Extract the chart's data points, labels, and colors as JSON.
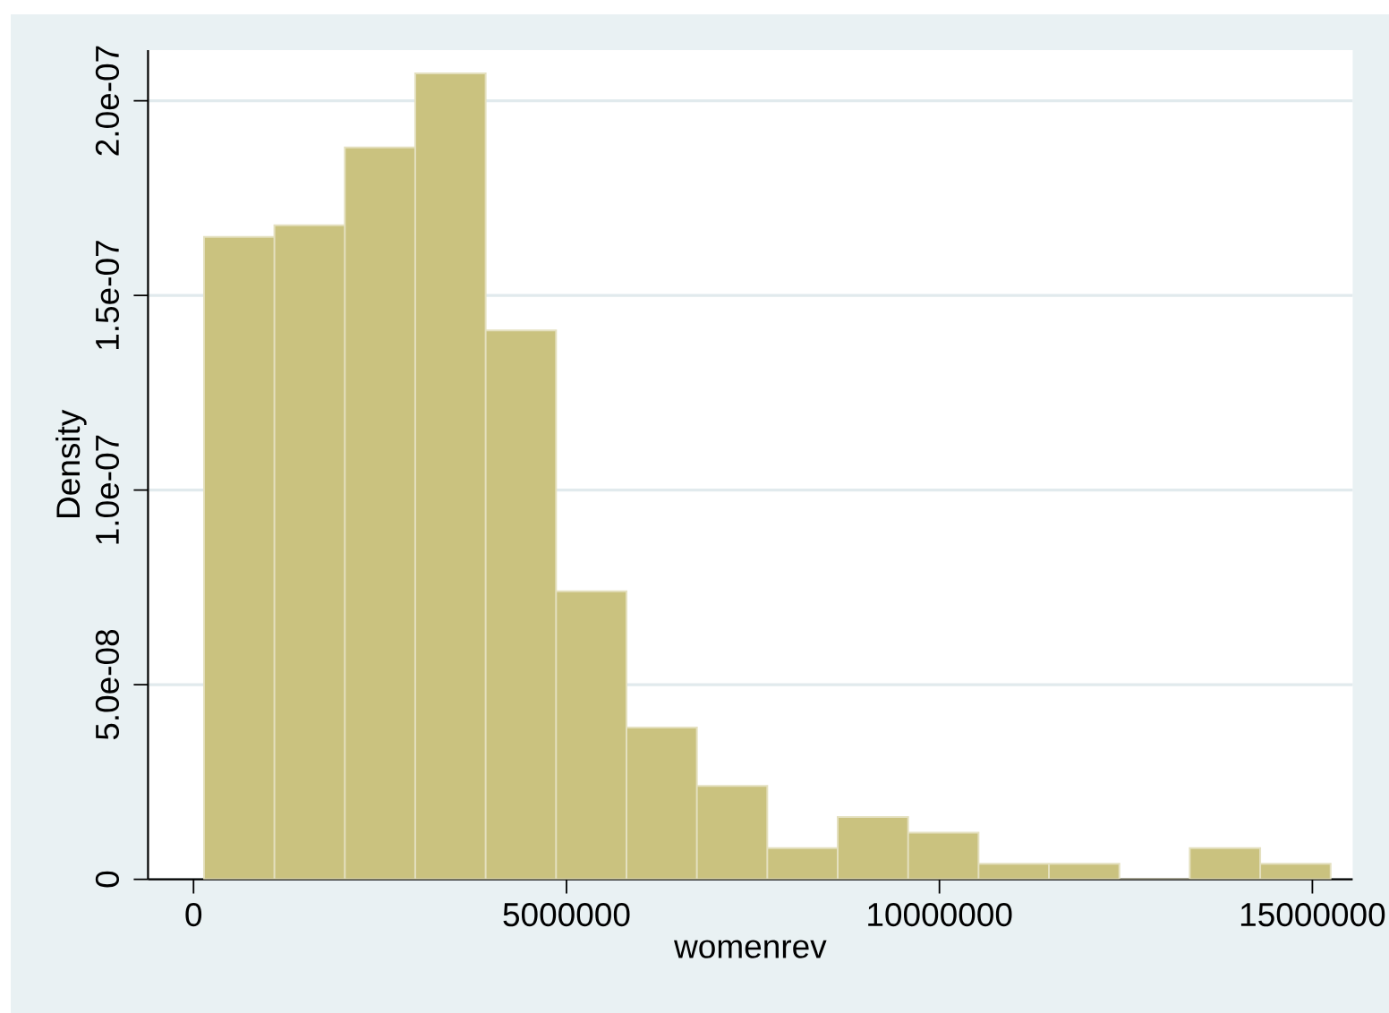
{
  "chart_data": {
    "type": "histogram",
    "xlabel": "womenrev",
    "ylabel": "Density",
    "bins": [
      140000,
      1084000,
      2028000,
      2972000,
      3916000,
      4860000,
      5804000,
      6748000,
      7692000,
      8636000,
      9580000,
      10524000,
      11468000,
      12412000,
      13356000,
      14300000,
      15244000
    ],
    "values": [
      1.65e-07,
      1.68e-07,
      1.88e-07,
      2.07e-07,
      1.41e-07,
      7.4e-08,
      3.9e-08,
      2.4e-08,
      8e-09,
      1.6e-08,
      1.2e-08,
      4e-09,
      4e-09,
      0,
      8e-09,
      4e-09
    ],
    "color": "#cac27f",
    "xlim": [
      -610000,
      15540000
    ],
    "ylim": [
      0,
      2.13e-07
    ],
    "xticks": [
      0,
      5000000,
      10000000,
      15000000
    ],
    "yticks": [
      0,
      {
        "value": 5e-08,
        "label": "5.0e-08"
      },
      {
        "value": 1e-07,
        "label": "1.0e-07"
      },
      {
        "value": 1.5e-07,
        "label": "1.5e-07"
      },
      {
        "value": 2e-07,
        "label": "2.0e-07"
      }
    ],
    "grid": "y"
  }
}
